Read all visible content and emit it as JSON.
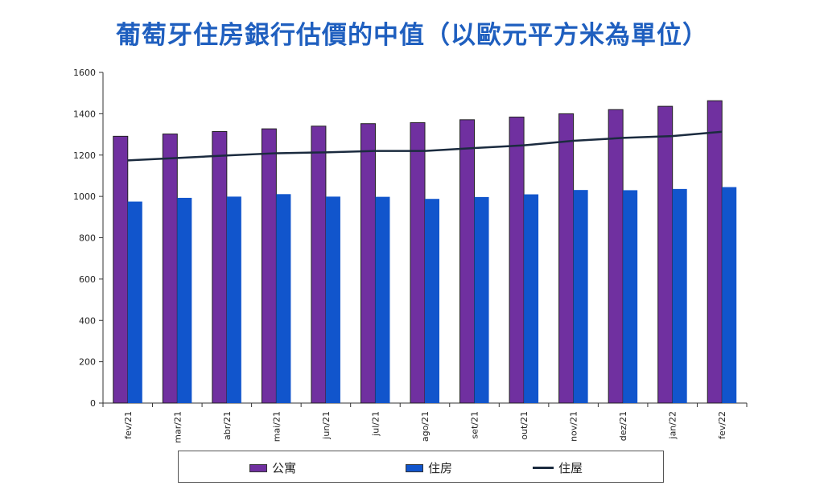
{
  "title": "葡萄牙住房銀行估價的中值（以歐元平方米為單位）",
  "chart_data": {
    "type": "bar",
    "title": "葡萄牙住房銀行估價的中值（以歐元平方米為單位）",
    "categories": [
      "fev/21",
      "mar/21",
      "abr/21",
      "mai/21",
      "jun/21",
      "jul/21",
      "ago/21",
      "set/21",
      "out/21",
      "nov/21",
      "dez/21",
      "jan/22",
      "fev/22"
    ],
    "series": [
      {
        "name": "公寓",
        "type": "bar",
        "color": "#7030a0",
        "values": [
          1291,
          1302,
          1314,
          1327,
          1340,
          1352,
          1357,
          1371,
          1384,
          1400,
          1420,
          1436,
          1463
        ]
      },
      {
        "name": "住房",
        "type": "bar",
        "color": "#1155cc",
        "values": [
          975,
          993,
          999,
          1011,
          999,
          998,
          988,
          997,
          1010,
          1031,
          1030,
          1036,
          1045
        ]
      },
      {
        "name": "住屋",
        "type": "line",
        "color": "#1b2b3f",
        "values": [
          1174,
          1186,
          1198,
          1209,
          1213,
          1220,
          1220,
          1234,
          1247,
          1269,
          1283,
          1292,
          1313
        ]
      }
    ],
    "ylim": [
      0,
      1600
    ],
    "yticks": [
      0,
      200,
      400,
      600,
      800,
      1000,
      1200,
      1400,
      1600
    ],
    "xlabel": "",
    "ylabel": "",
    "legend": "bottom",
    "grid": false
  }
}
